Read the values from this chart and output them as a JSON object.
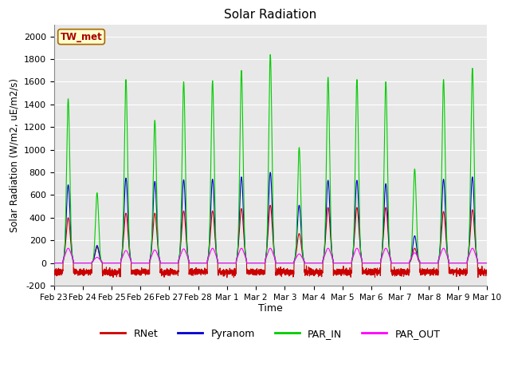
{
  "title": "Solar Radiation",
  "ylabel": "Solar Radiation (W/m2, uE/m2/s)",
  "xlabel": "Time",
  "ylim": [
    -200,
    2100
  ],
  "yticks": [
    -200,
    0,
    200,
    400,
    600,
    800,
    1000,
    1200,
    1400,
    1600,
    1800,
    2000
  ],
  "xtick_labels": [
    "Feb 23",
    "Feb 24",
    "Feb 25",
    "Feb 26",
    "Feb 27",
    "Feb 28",
    "Mar 1",
    "Mar 2",
    "Mar 3",
    "Mar 4",
    "Mar 5",
    "Mar 6",
    "Mar 7",
    "Mar 8",
    "Mar 9",
    "Mar 10"
  ],
  "station_label": "TW_met",
  "colors": {
    "RNet": "#cc0000",
    "Pyranom": "#0000cc",
    "PAR_IN": "#00cc00",
    "PAR_OUT": "#ff00ff"
  },
  "bg_color": "#e8e8e8",
  "n_days": 15,
  "points_per_day": 288,
  "par_in_peaks": [
    1450,
    620,
    1620,
    1260,
    1600,
    1610,
    1700,
    1840,
    1020,
    1640,
    1620,
    1600,
    830,
    1620,
    1720
  ],
  "pyranom_peaks": [
    690,
    155,
    750,
    720,
    735,
    740,
    760,
    800,
    510,
    730,
    730,
    700,
    240,
    740,
    760
  ],
  "rnet_peaks": [
    400,
    140,
    440,
    440,
    460,
    460,
    480,
    510,
    260,
    490,
    490,
    490,
    130,
    455,
    470
  ],
  "par_out_peaks": [
    130,
    50,
    110,
    115,
    125,
    130,
    130,
    130,
    80,
    130,
    130,
    130,
    90,
    130,
    130
  ],
  "rnet_night": -80,
  "sigma_narrow": 0.055,
  "sigma_wide": 0.1,
  "day_start": 0.32,
  "day_end": 0.68
}
